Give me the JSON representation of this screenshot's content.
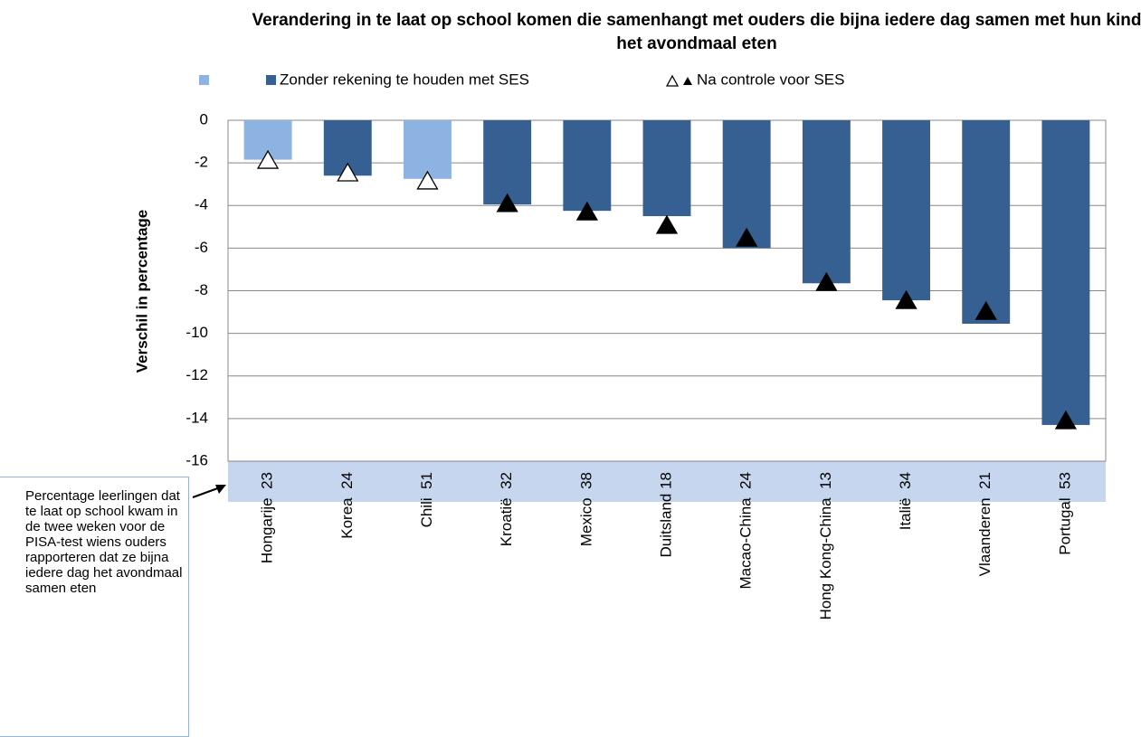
{
  "chart_data": {
    "type": "bar",
    "title": "Verandering in te laat op school komen die samenhangt met ouders die bijna iedere dag samen met hun kind het avondmaal eten",
    "y_label": "Verschil in percentage",
    "annotation": "Percentage leerlingen dat te laat op school kwam in de twee weken voor de PISA-test wiens ouders rapporteren dat ze bijna iedere dag het avondmaal samen eten",
    "categories": [
      "Hongarije  23",
      "Korea  24",
      "Chili  51",
      "Kroatië  32",
      "Mexico  38",
      "Duitsland 18",
      "Macao-China  24",
      "Hong Kong-China  13",
      "Italië  34",
      "Vlaanderen  21",
      "Portugal  53"
    ],
    "series": [
      {
        "name": "Zonder rekening te houden met SES",
        "color": "#366092",
        "colors": [
          "#8db3e2",
          "#366092",
          "#8db3e2",
          "#366092",
          "#366092",
          "#366092",
          "#366092",
          "#366092",
          "#366092",
          "#366092",
          "#366092"
        ],
        "values": [
          -1.85,
          -2.6,
          -2.75,
          -3.95,
          -4.25,
          -4.5,
          -6.0,
          -7.65,
          -8.45,
          -9.55,
          -14.3
        ]
      },
      {
        "name": "Na controle voor SES",
        "type": "marker",
        "colors": [
          "#ffffff",
          "#ffffff",
          "#ffffff",
          "#000000",
          "#000000",
          "#000000",
          "#000000",
          "#000000",
          "#000000",
          "#000000",
          "#000000"
        ],
        "values": [
          -1.87,
          -2.46,
          -2.84,
          -3.9,
          -4.29,
          -4.92,
          -5.52,
          -7.6,
          -8.45,
          -8.96,
          -14.09
        ]
      }
    ],
    "ylim": [
      -16,
      0
    ],
    "yticks": [
      0,
      -2,
      -4,
      -6,
      -8,
      -10,
      -12,
      -14,
      -16
    ],
    "grid": true
  }
}
